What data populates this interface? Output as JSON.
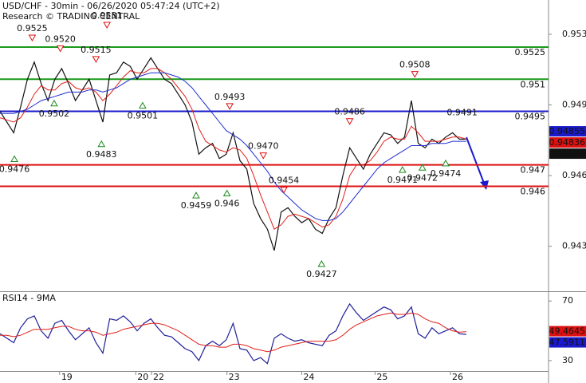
{
  "chart_data": [
    {
      "type": "line",
      "title": "USD/CHF - 30min - 06/26/2020 05:47:24 (UTC+2)",
      "subtitle": "Research © TRADING CENTRAL",
      "x": [
        0,
        1,
        2,
        3,
        4,
        5,
        6,
        7,
        8,
        9,
        10,
        11,
        12,
        13,
        14,
        15,
        16,
        17,
        18,
        19,
        20,
        21,
        22,
        23,
        24,
        25,
        26,
        27,
        28,
        29,
        30,
        31,
        32,
        33,
        34,
        35,
        36,
        37,
        38,
        39,
        40,
        41,
        42,
        43,
        44,
        45,
        46,
        47,
        48,
        49,
        50,
        51,
        52,
        53,
        54,
        55,
        56,
        57,
        58,
        59,
        60,
        61,
        62,
        63,
        64,
        65,
        66,
        67,
        68
      ],
      "series": [
        {
          "color": "#111111",
          "values": [
            0.9495,
            0.949,
            0.9485,
            0.9497,
            0.951,
            0.9518,
            0.9508,
            0.95,
            0.951,
            0.9515,
            0.9508,
            0.95,
            0.9505,
            0.951,
            0.95,
            0.949,
            0.9512,
            0.9513,
            0.9518,
            0.9516,
            0.951,
            0.9515,
            0.952,
            0.9515,
            0.951,
            0.9508,
            0.9503,
            0.9498,
            0.949,
            0.9475,
            0.9478,
            0.948,
            0.9473,
            0.9475,
            0.9485,
            0.9472,
            0.9468,
            0.9452,
            0.9445,
            0.944,
            0.943,
            0.9448,
            0.945,
            0.9446,
            0.9443,
            0.9445,
            0.944,
            0.9438,
            0.9445,
            0.945,
            0.9465,
            0.9478,
            0.9473,
            0.9468,
            0.9475,
            0.948,
            0.9485,
            0.9484,
            0.948,
            0.9483,
            0.95,
            0.948,
            0.9478,
            0.9482,
            0.948,
            0.9483,
            0.9485,
            0.9482,
            0.9482
          ]
        },
        {
          "color": "#e0201a",
          "values": [
            0.9492,
            0.9491,
            0.949,
            0.9492,
            0.9497,
            0.9503,
            0.9507,
            0.9505,
            0.9505,
            0.9508,
            0.9509,
            0.9506,
            0.9505,
            0.9506,
            0.9504,
            0.95,
            0.9503,
            0.9507,
            0.9511,
            0.9514,
            0.9513,
            0.9513,
            0.9515,
            0.9515,
            0.9513,
            0.951,
            0.9506,
            0.9502,
            0.9496,
            0.9487,
            0.9481,
            0.9479,
            0.9477,
            0.9476,
            0.9478,
            0.9477,
            0.9473,
            0.9465,
            0.9456,
            0.9448,
            0.944,
            0.9442,
            0.9446,
            0.9447,
            0.9446,
            0.9445,
            0.9443,
            0.9441,
            0.9442,
            0.9446,
            0.9454,
            0.9465,
            0.947,
            0.947,
            0.9472,
            0.9476,
            0.9481,
            0.9483,
            0.9482,
            0.9482,
            0.9488,
            0.9485,
            0.9481,
            0.9481,
            0.9481,
            0.9482,
            0.9483,
            0.9483,
            0.9482
          ]
        },
        {
          "color": "#1f2fd0",
          "values": [
            0.9494,
            0.9494,
            0.9494,
            0.9495,
            0.9496,
            0.9498,
            0.95,
            0.9501,
            0.9502,
            0.9503,
            0.9504,
            0.9504,
            0.9504,
            0.9505,
            0.9505,
            0.9504,
            0.9505,
            0.9506,
            0.9508,
            0.951,
            0.9511,
            0.9512,
            0.9513,
            0.9513,
            0.9513,
            0.9512,
            0.9511,
            0.9509,
            0.9506,
            0.9502,
            0.9498,
            0.9494,
            0.949,
            0.9486,
            0.9484,
            0.9482,
            0.9479,
            0.9475,
            0.9471,
            0.9467,
            0.9462,
            0.9458,
            0.9455,
            0.9452,
            0.9449,
            0.9447,
            0.9445,
            0.9444,
            0.9444,
            0.9445,
            0.9448,
            0.9452,
            0.9456,
            0.946,
            0.9464,
            0.9468,
            0.9471,
            0.9473,
            0.9475,
            0.9477,
            0.9479,
            0.9479,
            0.9479,
            0.948,
            0.948,
            0.948,
            0.9481,
            0.9481,
            0.9481
          ]
        }
      ],
      "xlim": [
        0,
        80
      ],
      "ylim": [
        0.9411,
        0.9547
      ],
      "yticks": [
        0.9531,
        0.9498,
        0.9465,
        0.9432
      ],
      "levels": [
        {
          "value": 0.9525,
          "label": "0.9525",
          "color": "#1a9a1a"
        },
        {
          "value": 0.951,
          "label": "0.951",
          "color": "#1a9a1a"
        },
        {
          "value": 0.9495,
          "label": "0.9495",
          "color": "#1a1acc"
        },
        {
          "value": 0.947,
          "label": "0.947",
          "color": "#dd1111"
        },
        {
          "value": 0.946,
          "label": "0.946",
          "color": "#dd1111"
        }
      ],
      "annotations": [
        {
          "text": "0.9525",
          "value": 0.9525,
          "x": 4.7,
          "dir": "high"
        },
        {
          "text": "0.9520",
          "value": 0.952,
          "x": 8.8,
          "dir": "high"
        },
        {
          "text": "0.9515",
          "value": 0.9515,
          "x": 14.0,
          "dir": "high"
        },
        {
          "text": "0.9531",
          "value": 0.9531,
          "x": 15.6,
          "dir": "high"
        },
        {
          "text": "0.9476",
          "value": 0.9476,
          "x": 2.1,
          "dir": "low"
        },
        {
          "text": "0.9502",
          "value": 0.9502,
          "x": 7.9,
          "dir": "low"
        },
        {
          "text": "0.9483",
          "value": 0.9483,
          "x": 14.8,
          "dir": "low"
        },
        {
          "text": "0.9501",
          "value": 0.9501,
          "x": 20.8,
          "dir": "low"
        },
        {
          "text": "0.9493",
          "value": 0.9493,
          "x": 33.5,
          "dir": "high"
        },
        {
          "text": "0.9459",
          "value": 0.9459,
          "x": 28.6,
          "dir": "low"
        },
        {
          "text": "0.946",
          "value": 0.946,
          "x": 33.1,
          "dir": "low"
        },
        {
          "text": "0.9470",
          "value": 0.947,
          "x": 38.4,
          "dir": "high"
        },
        {
          "text": "0.9454",
          "value": 0.9454,
          "x": 41.4,
          "dir": "high"
        },
        {
          "text": "0.9427",
          "value": 0.9427,
          "x": 46.9,
          "dir": "low"
        },
        {
          "text": "0.9486",
          "value": 0.9486,
          "x": 51.0,
          "dir": "high"
        },
        {
          "text": "0.9508",
          "value": 0.9508,
          "x": 60.5,
          "dir": "high"
        },
        {
          "text": "0.9491",
          "value": 0.9491,
          "x": 67.4,
          "dir": "label"
        },
        {
          "text": "0.9471",
          "value": 0.9471,
          "x": 58.7,
          "dir": "low"
        },
        {
          "text": "0.9472",
          "value": 0.9472,
          "x": 61.6,
          "dir": "low"
        },
        {
          "text": "0.9474",
          "value": 0.9474,
          "x": 65.0,
          "dir": "low"
        }
      ],
      "badges": [
        {
          "value": 0.94855,
          "color": "#1a1acc"
        },
        {
          "value": 0.94836,
          "color": "#dd1111"
        },
        {
          "value": 0.94824,
          "color": "#111111"
        }
      ]
    },
    {
      "type": "line",
      "title": "RSI14 - 9MA",
      "x": [
        0,
        1,
        2,
        3,
        4,
        5,
        6,
        7,
        8,
        9,
        10,
        11,
        12,
        13,
        14,
        15,
        16,
        17,
        18,
        19,
        20,
        21,
        22,
        23,
        24,
        25,
        26,
        27,
        28,
        29,
        30,
        31,
        32,
        33,
        34,
        35,
        36,
        37,
        38,
        39,
        40,
        41,
        42,
        43,
        44,
        45,
        46,
        47,
        48,
        49,
        50,
        51,
        52,
        53,
        54,
        55,
        56,
        57,
        58,
        59,
        60,
        61,
        62,
        63,
        64,
        65,
        66,
        67,
        68
      ],
      "series": [
        {
          "color": "#1f1f99",
          "values": [
            48,
            45,
            42,
            52,
            58,
            60,
            50,
            45,
            55,
            57,
            50,
            44,
            48,
            52,
            42,
            35,
            58,
            57,
            60,
            56,
            50,
            55,
            58,
            52,
            47,
            46,
            42,
            38,
            36,
            30,
            40,
            43,
            40,
            44,
            55,
            38,
            37,
            30,
            32,
            28,
            45,
            48,
            45,
            43,
            44,
            42,
            41,
            40,
            47,
            50,
            60,
            68,
            62,
            57,
            60,
            63,
            66,
            64,
            58,
            60,
            66,
            48,
            45,
            52,
            48,
            50,
            52,
            48,
            47.5911
          ]
        },
        {
          "color": "#e0201a",
          "values": [
            47,
            47,
            46,
            47,
            49,
            51,
            51,
            51,
            52,
            53,
            53,
            51,
            50,
            50,
            49,
            47,
            48,
            49,
            51,
            52,
            53,
            54,
            55,
            55,
            54,
            52,
            50,
            47,
            44,
            41,
            40,
            40,
            39,
            39,
            41,
            41,
            40,
            38,
            37,
            36,
            37,
            39,
            40,
            41,
            42,
            43,
            43,
            43,
            43,
            44,
            47,
            51,
            54,
            56,
            58,
            60,
            61,
            62,
            61,
            61,
            62,
            61,
            58,
            56,
            55,
            52,
            50,
            49,
            49.4645
          ]
        }
      ],
      "xlim": [
        0,
        80
      ],
      "ylim": [
        23,
        76
      ],
      "yticks": [
        70,
        30
      ],
      "xticks": [
        {
          "value": 8.7,
          "label": "19"
        },
        {
          "value": 19.8,
          "label": "20"
        },
        {
          "value": 22.1,
          "label": "22"
        },
        {
          "value": 33.1,
          "label": "23"
        },
        {
          "value": 44,
          "label": "24"
        },
        {
          "value": 54.7,
          "label": "25"
        },
        {
          "value": 65.7,
          "label": "26"
        }
      ],
      "badges": [
        {
          "value": 49.4645,
          "color": "#dd1111"
        },
        {
          "value": 47.5911,
          "color": "#1a1acc"
        }
      ]
    }
  ]
}
